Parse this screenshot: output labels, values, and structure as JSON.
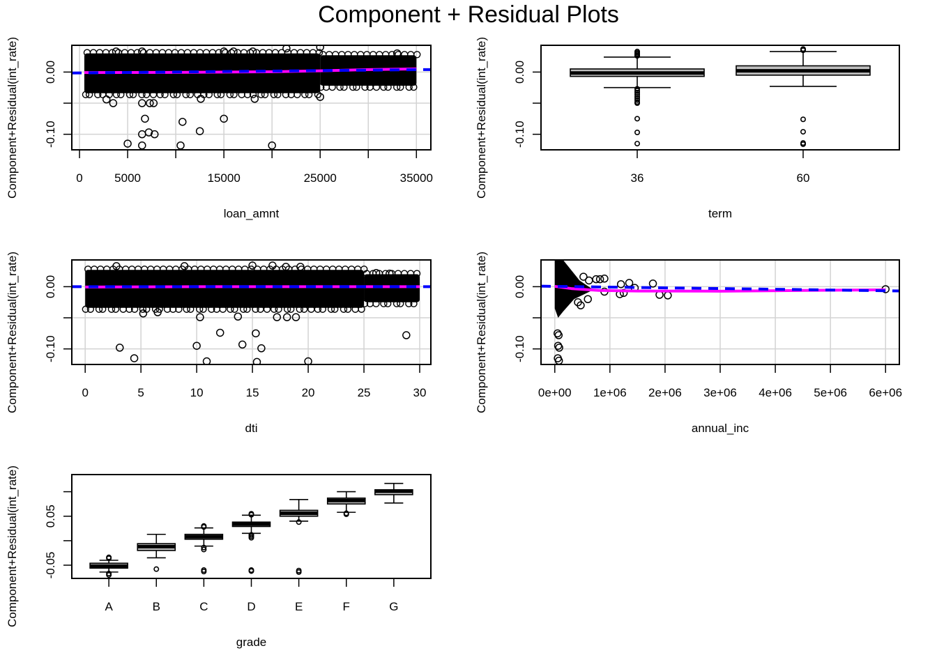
{
  "chart_data": {
    "title": "Component + Residual Plots",
    "colors": {
      "points": "#000000",
      "grid": "#d3d3d3",
      "linear_fit": "#0000ff",
      "smooth_fit": "#ff00ff",
      "box_fill": "#bebebe",
      "box_median": "#000000"
    },
    "panels": [
      {
        "id": "loan_amnt",
        "type": "scatter",
        "xlabel": "loan_amnt",
        "ylabel": "Component+Residual(int_rate)",
        "xlim": [
          -800,
          36500
        ],
        "ylim": [
          -0.125,
          0.043
        ],
        "xticks": [
          0,
          5000,
          10000,
          15000,
          20000,
          25000,
          30000,
          35000
        ],
        "xtick_labels": [
          "0",
          "5000",
          "",
          "15000",
          "",
          "25000",
          "",
          "35000"
        ],
        "yticks": [
          0.0,
          -0.05,
          -0.1
        ],
        "ytick_labels": [
          "0.00",
          "",
          "-0.10"
        ],
        "grid": true,
        "dense_band": [
          {
            "x0": 500,
            "x1": 25000,
            "y0": -0.034,
            "y1": 0.03
          },
          {
            "x0": 25000,
            "x1": 35000,
            "y0": -0.022,
            "y1": 0.027
          }
        ],
        "outliers": [
          [
            5000,
            -0.115
          ],
          [
            6500,
            -0.118
          ],
          [
            6500,
            -0.1
          ],
          [
            7200,
            -0.097
          ],
          [
            7800,
            -0.1
          ],
          [
            10500,
            -0.118
          ],
          [
            10700,
            -0.08
          ],
          [
            12500,
            -0.095
          ],
          [
            15000,
            -0.075
          ],
          [
            20000,
            -0.118
          ],
          [
            6800,
            -0.075
          ],
          [
            6500,
            -0.05
          ],
          [
            7300,
            -0.05
          ],
          [
            7700,
            -0.05
          ],
          [
            3500,
            -0.05
          ],
          [
            2800,
            -0.044
          ],
          [
            12600,
            -0.043
          ],
          [
            18200,
            -0.043
          ],
          [
            25000,
            -0.04
          ],
          [
            21500,
            0.038
          ],
          [
            25000,
            0.04
          ],
          [
            15000,
            0.033
          ],
          [
            16000,
            0.033
          ],
          [
            18000,
            0.033
          ],
          [
            33000,
            0.03
          ],
          [
            3800,
            0.033
          ],
          [
            6500,
            0.033
          ]
        ],
        "linear_fit": [
          [
            -800,
            -0.0015
          ],
          [
            36500,
            0.004
          ]
        ],
        "smooth_fit": [
          [
            500,
            -0.0008
          ],
          [
            10000,
            -0.0005
          ],
          [
            20000,
            0.0005
          ],
          [
            25000,
            0.002
          ],
          [
            30000,
            0.004
          ],
          [
            35000,
            0.005
          ]
        ]
      },
      {
        "id": "term",
        "type": "boxplot",
        "xlabel": "term",
        "ylabel": "Component+Residual(int_rate)",
        "ylim": [
          -0.125,
          0.043
        ],
        "yticks": [
          0.0,
          -0.05,
          -0.1
        ],
        "ytick_labels": [
          "0.00",
          "",
          "-0.10"
        ],
        "categories": [
          "36",
          "60"
        ],
        "boxes": [
          {
            "label": "36",
            "q1": -0.007,
            "median": -0.0015,
            "q3": 0.005,
            "whisker_low": -0.025,
            "whisker_high": 0.024,
            "outliers": [
              0.033,
              0.031,
              0.029,
              0.027,
              0.026,
              -0.027,
              -0.03,
              -0.033,
              -0.036,
              -0.039,
              -0.042,
              -0.045,
              -0.048,
              -0.05,
              -0.075,
              -0.097,
              -0.115
            ]
          },
          {
            "label": "60",
            "q1": -0.005,
            "median": 0.002,
            "q3": 0.01,
            "whisker_low": -0.023,
            "whisker_high": 0.033,
            "outliers": [
              0.036,
              0.037,
              0.035,
              -0.076,
              -0.096,
              -0.114,
              -0.116
            ]
          }
        ]
      },
      {
        "id": "dti",
        "type": "scatter",
        "xlabel": "dti",
        "ylabel": "Component+Residual(int_rate)",
        "xlim": [
          -1.2,
          31
        ],
        "ylim": [
          -0.125,
          0.043
        ],
        "xticks": [
          0,
          5,
          10,
          15,
          20,
          25,
          30
        ],
        "xtick_labels": [
          "0",
          "5",
          "10",
          "15",
          "20",
          "25",
          "30"
        ],
        "yticks": [
          0.0,
          -0.05,
          -0.1
        ],
        "ytick_labels": [
          "0.00",
          "",
          "-0.10"
        ],
        "grid": true,
        "dense_band": [
          {
            "x0": 0,
            "x1": 25,
            "y0": -0.034,
            "y1": 0.027
          },
          {
            "x0": 25,
            "x1": 30,
            "y0": -0.025,
            "y1": 0.02
          }
        ],
        "outliers": [
          [
            3.1,
            -0.098
          ],
          [
            4.4,
            -0.115
          ],
          [
            10,
            -0.095
          ],
          [
            10.9,
            -0.12
          ],
          [
            12.1,
            -0.074
          ],
          [
            14.1,
            -0.093
          ],
          [
            15.3,
            -0.075
          ],
          [
            15.8,
            -0.099
          ],
          [
            15.4,
            -0.121
          ],
          [
            20,
            -0.12
          ],
          [
            28.8,
            -0.078
          ],
          [
            5.2,
            -0.043
          ],
          [
            6.5,
            -0.041
          ],
          [
            10.3,
            -0.049
          ],
          [
            13.7,
            -0.048
          ],
          [
            17.2,
            -0.049
          ],
          [
            18.1,
            -0.049
          ],
          [
            18.9,
            -0.049
          ],
          [
            2.8,
            0.033
          ],
          [
            8.9,
            0.033
          ],
          [
            15,
            0.034
          ],
          [
            16.8,
            0.034
          ],
          [
            18,
            0.032
          ],
          [
            19.3,
            0.032
          ],
          [
            26.1,
            0.022
          ],
          [
            27.3,
            0.021
          ]
        ],
        "linear_fit": [
          [
            -1.2,
            0.0
          ],
          [
            31,
            0.0
          ]
        ],
        "smooth_fit": [
          [
            0,
            -0.0005
          ],
          [
            10,
            0.0
          ],
          [
            20,
            0.0
          ],
          [
            30,
            0.0
          ]
        ]
      },
      {
        "id": "annual_inc",
        "type": "scatter",
        "xlabel": "annual_inc",
        "ylabel": "Component+Residual(int_rate)",
        "xlim": [
          -250000,
          6250000
        ],
        "ylim": [
          -0.125,
          0.043
        ],
        "xticks": [
          0,
          1000000,
          2000000,
          3000000,
          4000000,
          5000000,
          6000000
        ],
        "xtick_labels": [
          "0e+00",
          "1e+06",
          "2e+06",
          "3e+06",
          "4e+06",
          "5e+06",
          "6e+06"
        ],
        "yticks": [
          0.0,
          -0.05,
          -0.1
        ],
        "ytick_labels": [
          "0.00",
          "",
          "-0.10"
        ],
        "grid": true,
        "dense_wedge": [
          [
            0,
            0.043
          ],
          [
            150000,
            0.043
          ],
          [
            450000,
            0.01
          ],
          [
            700000,
            -0.005
          ],
          [
            350000,
            -0.02
          ],
          [
            150000,
            -0.04
          ],
          [
            60000,
            -0.05
          ],
          [
            0,
            -0.035
          ]
        ],
        "outliers": [
          [
            50000,
            -0.075
          ],
          [
            70000,
            -0.078
          ],
          [
            60000,
            -0.095
          ],
          [
            80000,
            -0.098
          ],
          [
            55000,
            -0.115
          ],
          [
            75000,
            -0.119
          ],
          [
            1200000,
            0.004
          ],
          [
            1350000,
            0.006
          ],
          [
            1780000,
            0.005
          ],
          [
            1900000,
            -0.013
          ],
          [
            2050000,
            -0.014
          ],
          [
            1180000,
            -0.012
          ],
          [
            1250000,
            -0.01
          ],
          [
            900000,
            -0.008
          ],
          [
            820000,
            0.012
          ],
          [
            750000,
            0.012
          ],
          [
            900000,
            0.013
          ],
          [
            1450000,
            -0.002
          ],
          [
            6000000,
            -0.004
          ],
          [
            620000,
            0.01
          ],
          [
            520000,
            0.016
          ],
          [
            420000,
            -0.025
          ],
          [
            470000,
            -0.03
          ],
          [
            600000,
            -0.02
          ]
        ],
        "linear_fit": [
          [
            -250000,
            0.0008
          ],
          [
            6250000,
            -0.0068
          ]
        ],
        "smooth_fit": [
          [
            0,
            0.0005
          ],
          [
            300000,
            -0.003
          ],
          [
            800000,
            -0.006
          ],
          [
            1500000,
            -0.007
          ],
          [
            3000000,
            -0.0072
          ],
          [
            4500000,
            -0.006
          ],
          [
            6000000,
            -0.005
          ]
        ]
      },
      {
        "id": "grade",
        "type": "boxplot",
        "xlabel": "grade",
        "ylabel": "Component+Residual(int_rate)",
        "ylim": [
          -0.077,
          0.135
        ],
        "yticks": [
          0.1,
          0.05,
          0.0,
          -0.05
        ],
        "ytick_labels": [
          "",
          "0.05",
          "",
          "-0.05"
        ],
        "categories": [
          "A",
          "B",
          "C",
          "D",
          "E",
          "F",
          "G"
        ],
        "boxes": [
          {
            "label": "A",
            "q1": -0.056,
            "median": -0.052,
            "q3": -0.046,
            "whisker_low": -0.064,
            "whisker_high": -0.04,
            "outliers": [
              -0.067,
              -0.07,
              -0.034,
              -0.036
            ]
          },
          {
            "label": "B",
            "q1": -0.02,
            "median": -0.012,
            "q3": -0.006,
            "whisker_low": -0.035,
            "whisker_high": 0.013,
            "outliers": [
              -0.058
            ]
          },
          {
            "label": "C",
            "q1": 0.003,
            "median": 0.008,
            "q3": 0.013,
            "whisker_low": -0.011,
            "whisker_high": 0.026,
            "outliers": [
              0.028,
              0.03,
              -0.014,
              -0.018,
              -0.06,
              -0.063
            ]
          },
          {
            "label": "D",
            "q1": 0.029,
            "median": 0.034,
            "q3": 0.038,
            "whisker_low": 0.015,
            "whisker_high": 0.052,
            "outliers": [
              0.055,
              0.053,
              0.012,
              0.009,
              0.006,
              -0.06,
              -0.062
            ]
          },
          {
            "label": "E",
            "q1": 0.05,
            "median": 0.056,
            "q3": 0.062,
            "whisker_low": 0.04,
            "whisker_high": 0.084,
            "outliers": [
              0.038,
              -0.061,
              -0.064
            ]
          },
          {
            "label": "F",
            "q1": 0.075,
            "median": 0.082,
            "q3": 0.087,
            "whisker_low": 0.058,
            "whisker_high": 0.1,
            "outliers": [
              0.054,
              0.056
            ]
          },
          {
            "label": "G",
            "q1": 0.094,
            "median": 0.101,
            "q3": 0.104,
            "whisker_low": 0.077,
            "whisker_high": 0.117,
            "outliers": []
          }
        ]
      }
    ]
  }
}
